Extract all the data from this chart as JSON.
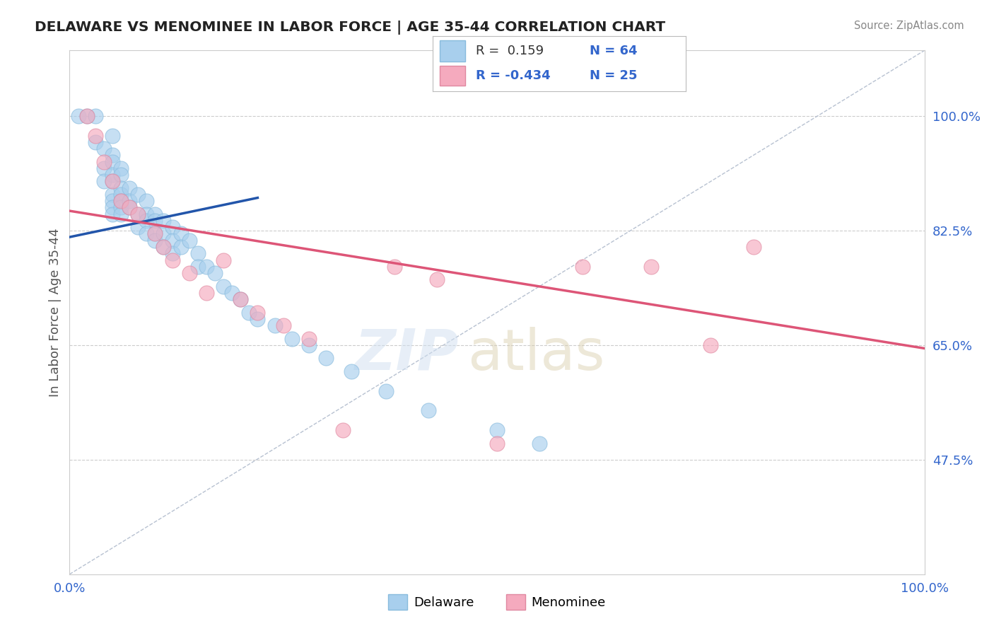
{
  "title": "DELAWARE VS MENOMINEE IN LABOR FORCE | AGE 35-44 CORRELATION CHART",
  "source": "Source: ZipAtlas.com",
  "ylabel": "In Labor Force | Age 35-44",
  "xlim": [
    0.0,
    1.0
  ],
  "ylim": [
    0.3,
    1.1
  ],
  "yticks": [
    0.475,
    0.65,
    0.825,
    1.0
  ],
  "ytick_labels": [
    "47.5%",
    "65.0%",
    "82.5%",
    "100.0%"
  ],
  "xtick_labels": [
    "0.0%",
    "100.0%"
  ],
  "delaware_R": 0.159,
  "delaware_N": 64,
  "menominee_R": -0.434,
  "menominee_N": 25,
  "delaware_color": "#A8CFED",
  "menominee_color": "#F5AABE",
  "delaware_edge": "#88BBDD",
  "menominee_edge": "#E088A0",
  "delaware_line_color": "#2255AA",
  "menominee_line_color": "#DD5577",
  "ref_line_color": "#B0BBCC",
  "grid_color": "#CCCCCC",
  "background_color": "#FFFFFF",
  "title_color": "#222222",
  "source_color": "#888888",
  "tick_color": "#3366CC",
  "ylabel_color": "#555555",
  "legend_R_color": "#333333",
  "delaware_x": [
    0.01,
    0.02,
    0.03,
    0.03,
    0.04,
    0.04,
    0.04,
    0.05,
    0.05,
    0.05,
    0.05,
    0.05,
    0.05,
    0.05,
    0.05,
    0.05,
    0.06,
    0.06,
    0.06,
    0.06,
    0.06,
    0.06,
    0.06,
    0.07,
    0.07,
    0.07,
    0.08,
    0.08,
    0.08,
    0.09,
    0.09,
    0.09,
    0.09,
    0.1,
    0.1,
    0.1,
    0.1,
    0.11,
    0.11,
    0.11,
    0.12,
    0.12,
    0.12,
    0.13,
    0.13,
    0.14,
    0.15,
    0.15,
    0.16,
    0.17,
    0.18,
    0.19,
    0.2,
    0.21,
    0.22,
    0.24,
    0.26,
    0.28,
    0.3,
    0.33,
    0.37,
    0.42,
    0.5,
    0.55
  ],
  "delaware_y": [
    1.0,
    1.0,
    1.0,
    0.96,
    0.95,
    0.92,
    0.9,
    0.97,
    0.94,
    0.93,
    0.91,
    0.9,
    0.88,
    0.87,
    0.86,
    0.85,
    0.92,
    0.91,
    0.89,
    0.88,
    0.87,
    0.86,
    0.85,
    0.89,
    0.87,
    0.86,
    0.88,
    0.85,
    0.83,
    0.87,
    0.85,
    0.84,
    0.82,
    0.85,
    0.84,
    0.82,
    0.81,
    0.84,
    0.82,
    0.8,
    0.83,
    0.81,
    0.79,
    0.82,
    0.8,
    0.81,
    0.79,
    0.77,
    0.77,
    0.76,
    0.74,
    0.73,
    0.72,
    0.7,
    0.69,
    0.68,
    0.66,
    0.65,
    0.63,
    0.61,
    0.58,
    0.55,
    0.52,
    0.5
  ],
  "menominee_x": [
    0.02,
    0.03,
    0.04,
    0.05,
    0.06,
    0.07,
    0.08,
    0.1,
    0.11,
    0.12,
    0.14,
    0.16,
    0.18,
    0.2,
    0.22,
    0.25,
    0.28,
    0.32,
    0.38,
    0.43,
    0.5,
    0.6,
    0.68,
    0.75,
    0.8
  ],
  "menominee_y": [
    1.0,
    0.97,
    0.93,
    0.9,
    0.87,
    0.86,
    0.85,
    0.82,
    0.8,
    0.78,
    0.76,
    0.73,
    0.78,
    0.72,
    0.7,
    0.68,
    0.66,
    0.52,
    0.77,
    0.75,
    0.5,
    0.77,
    0.77,
    0.65,
    0.8
  ],
  "delaware_trend_x0": 0.0,
  "delaware_trend_y0": 0.815,
  "delaware_trend_x1": 0.22,
  "delaware_trend_y1": 0.875,
  "menominee_trend_x0": 0.0,
  "menominee_trend_y0": 0.855,
  "menominee_trend_x1": 1.0,
  "menominee_trend_y1": 0.645
}
